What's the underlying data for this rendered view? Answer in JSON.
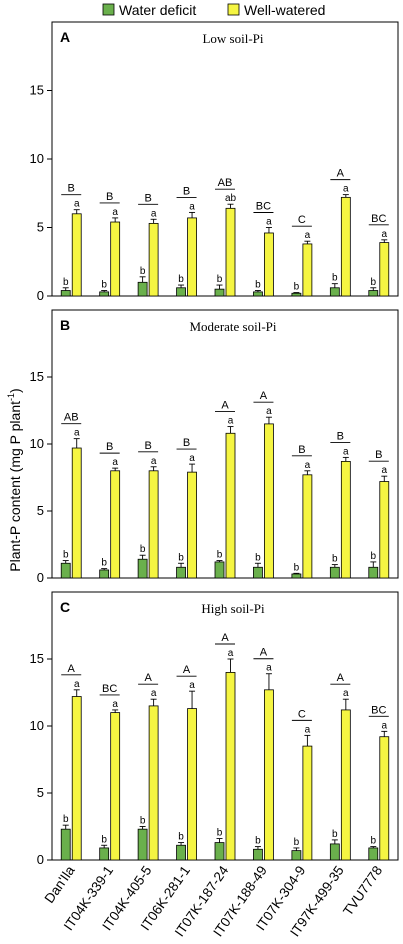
{
  "legend": {
    "items": [
      {
        "label": "Water deficit",
        "color": "#6ab04c"
      },
      {
        "label": "Well-watered",
        "color": "#f5f542"
      }
    ]
  },
  "ylabel_main": "Plant-P content (mg P plant",
  "ylabel_sup": "-1",
  "ylabel_end": ")",
  "categories": [
    "Dan'Ila",
    "IT04K-339-1",
    "IT04K-405-5",
    "IT06K-281-1",
    "IT07K-187-24",
    "IT07K-188-49",
    "IT07K-304-9",
    "IT97K-499-35",
    "TVU7778"
  ],
  "chart_data": [
    {
      "type": "bar",
      "panel_label": "A",
      "title": "Low soil-Pi",
      "ylim": [
        0,
        20
      ],
      "yticks": [
        0,
        5,
        10,
        15
      ],
      "series": [
        {
          "name": "Water deficit",
          "color": "#6ab04c",
          "values": [
            0.4,
            0.3,
            1.0,
            0.6,
            0.5,
            0.3,
            0.2,
            0.6,
            0.4
          ],
          "errors": [
            0.2,
            0.1,
            0.4,
            0.2,
            0.3,
            0.1,
            0.05,
            0.3,
            0.2
          ],
          "letters": [
            "b",
            "b",
            "b",
            "b",
            "b",
            "b",
            "b",
            "b",
            "b"
          ]
        },
        {
          "name": "Well-watered",
          "color": "#f5f542",
          "values": [
            6.0,
            5.4,
            5.3,
            5.7,
            6.4,
            4.6,
            3.8,
            7.2,
            3.9
          ],
          "errors": [
            0.3,
            0.3,
            0.3,
            0.4,
            0.3,
            0.4,
            0.2,
            0.2,
            0.2
          ],
          "letters": [
            "a",
            "a",
            "a",
            "a",
            "ab",
            "a",
            "a",
            "a",
            "a"
          ]
        }
      ],
      "groups": [
        "B",
        "B",
        "B",
        "B",
        "AB",
        "BC",
        "C",
        "A",
        "BC"
      ]
    },
    {
      "type": "bar",
      "panel_label": "B",
      "title": "Moderate soil-Pi",
      "ylim": [
        0,
        20
      ],
      "yticks": [
        0,
        5,
        10,
        15
      ],
      "series": [
        {
          "name": "Water deficit",
          "color": "#6ab04c",
          "values": [
            1.1,
            0.6,
            1.4,
            0.8,
            1.2,
            0.8,
            0.3,
            0.8,
            0.8
          ],
          "errors": [
            0.2,
            0.1,
            0.3,
            0.3,
            0.1,
            0.3,
            0.05,
            0.2,
            0.4
          ],
          "letters": [
            "b",
            "b",
            "b",
            "b",
            "b",
            "b",
            "b",
            "b",
            "b"
          ]
        },
        {
          "name": "Well-watered",
          "color": "#f5f542",
          "values": [
            9.7,
            8.0,
            8.0,
            7.9,
            10.8,
            11.5,
            7.7,
            8.7,
            7.2
          ],
          "errors": [
            0.7,
            0.2,
            0.3,
            0.6,
            0.5,
            0.5,
            0.3,
            0.3,
            0.4
          ],
          "letters": [
            "a",
            "a",
            "a",
            "a",
            "a",
            "a",
            "a",
            "a",
            "a"
          ]
        }
      ],
      "groups": [
        "AB",
        "B",
        "B",
        "B",
        "A",
        "A",
        "B",
        "B",
        "B"
      ]
    },
    {
      "type": "bar",
      "panel_label": "C",
      "title": "High soil-Pi",
      "ylim": [
        0,
        20
      ],
      "yticks": [
        0,
        5,
        10,
        15
      ],
      "series": [
        {
          "name": "Water deficit",
          "color": "#6ab04c",
          "values": [
            2.3,
            0.9,
            2.3,
            1.1,
            1.3,
            0.8,
            0.7,
            1.2,
            0.9
          ],
          "errors": [
            0.3,
            0.2,
            0.2,
            0.2,
            0.3,
            0.2,
            0.2,
            0.3,
            0.1
          ],
          "letters": [
            "b",
            "b",
            "b",
            "b",
            "b",
            "b",
            "b",
            "b",
            "b"
          ]
        },
        {
          "name": "Well-watered",
          "color": "#f5f542",
          "values": [
            12.2,
            11.0,
            11.5,
            11.3,
            14.0,
            12.7,
            8.5,
            11.2,
            9.2
          ],
          "errors": [
            0.5,
            0.2,
            0.5,
            1.3,
            1.0,
            1.2,
            0.8,
            0.8,
            0.4
          ],
          "letters": [
            "a",
            "a",
            "a",
            "a",
            "a",
            "a",
            "a",
            "a",
            "a"
          ]
        }
      ],
      "groups": [
        "A",
        "BC",
        "A",
        "A",
        "A",
        "A",
        "C",
        "A",
        "BC"
      ]
    }
  ]
}
